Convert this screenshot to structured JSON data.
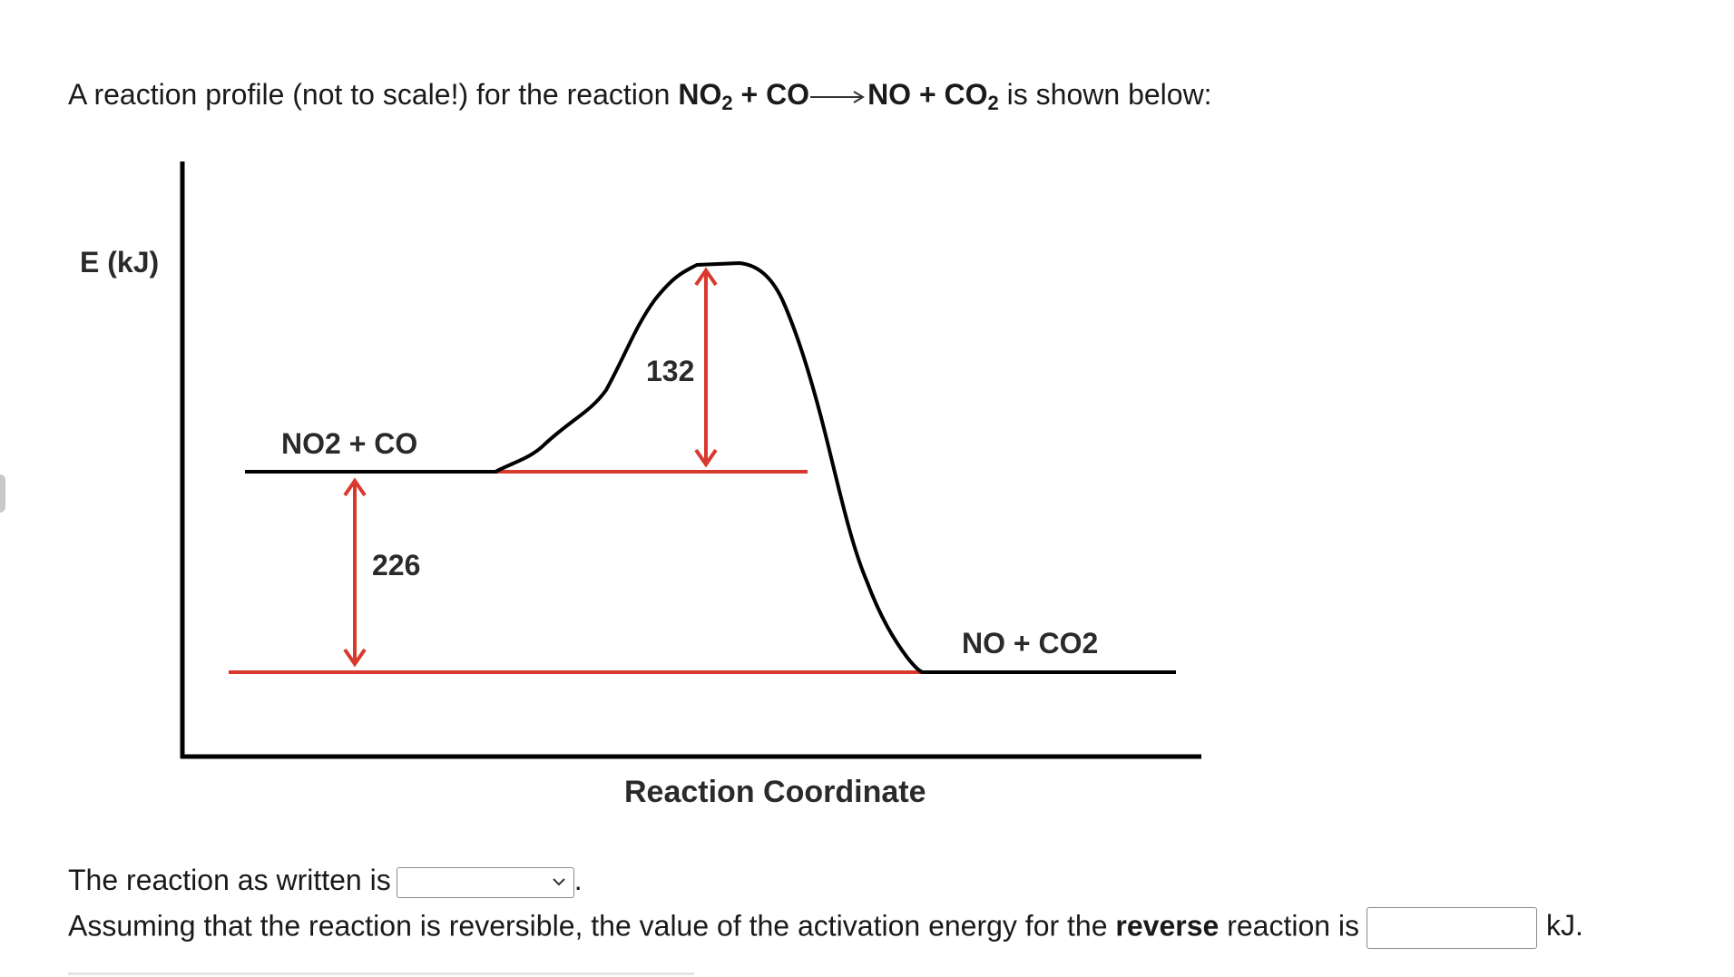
{
  "intro": {
    "prefix": "A reaction profile (not to scale!) for the reaction ",
    "reactant1": "NO",
    "reactant1_sub": "2",
    "plus1": " + ",
    "reactant2": "CO",
    "product1": "NO",
    "plus2": " + ",
    "product2": "CO",
    "product2_sub": "2",
    "suffix": " is shown below:"
  },
  "diagram": {
    "y_axis_label": "E (kJ)",
    "x_axis_label": "Reaction Coordinate",
    "reactants_label": "NO2 + CO",
    "products_label": "NO + CO2",
    "activation_energy_label": "132",
    "enthalpy_change_label": "226",
    "colors": {
      "curve": "#000000",
      "arrows": "#d9382f",
      "red_lines": "#d9382f",
      "axes": "#000000"
    }
  },
  "question1": {
    "text": "The reaction as written is",
    "select_value": "",
    "period": "."
  },
  "question2": {
    "text_before": "Assuming that the reaction is reversible, the value of the activation energy for the ",
    "bold_word": "reverse",
    "text_after": " reaction is",
    "input_value": "",
    "unit": "kJ."
  }
}
